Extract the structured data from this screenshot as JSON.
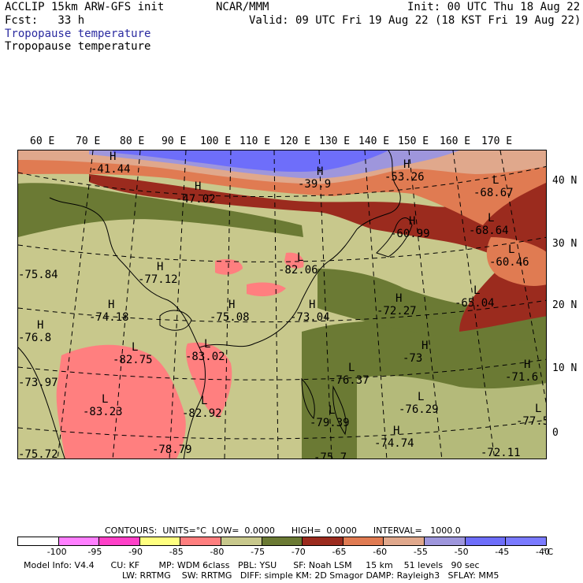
{
  "header": {
    "line1_left": "ACCLIP 15km ARW-GFS init",
    "line1_mid": "NCAR/MMM",
    "line1_right": "Init: 00 UTC Thu 18 Aug 22",
    "line2_left": "Fcst:   33 h",
    "line2_right": "Valid: 09 UTC Fri 19 Aug 22 (18 KST Fri 19 Aug 22)",
    "field_title_1": "Tropopause temperature",
    "field_title_2": "Tropopause temperature"
  },
  "axes": {
    "lon_labels": [
      "60 E",
      "70 E",
      "80 E",
      "90 E",
      "100 E",
      "110 E",
      "120 E",
      "130 E",
      "140 E",
      "150 E",
      "160 E",
      "170 E"
    ],
    "lat_labels": [
      "40 N",
      "30 N",
      "20 N",
      "10 N",
      "0"
    ]
  },
  "map_labels": [
    {
      "mark": "H",
      "value": "-41.44"
    },
    {
      "mark": "H",
      "value": "-47.02"
    },
    {
      "mark": "H",
      "value": "-39.9"
    },
    {
      "mark": "H",
      "value": "-53.26"
    },
    {
      "mark": "L",
      "value": "-68.67"
    },
    {
      "mark": "H",
      "value": "-60.99"
    },
    {
      "mark": "L",
      "value": "-68.64"
    },
    {
      "mark": "L",
      "value": "-60.46"
    },
    {
      "mark": "L",
      "value": "-82.06"
    },
    {
      "mark": "H",
      "value": "-77.12"
    },
    {
      "mark": "",
      "value": "-75.84"
    },
    {
      "mark": "H",
      "value": "-74.18"
    },
    {
      "mark": "H",
      "value": "-75.08"
    },
    {
      "mark": "H",
      "value": "-73.04"
    },
    {
      "mark": "H",
      "value": "-72.27"
    },
    {
      "mark": "L",
      "value": "-65.04"
    },
    {
      "mark": "H",
      "value": "-76.8"
    },
    {
      "mark": "L",
      "value": "-82.75"
    },
    {
      "mark": "L",
      "value": "-83.02"
    },
    {
      "mark": "H",
      "value": "-73"
    },
    {
      "mark": "H",
      "value": "-71.6"
    },
    {
      "mark": "",
      "value": "-73.97"
    },
    {
      "mark": "L",
      "value": "-76.37"
    },
    {
      "mark": "L",
      "value": "-83.23"
    },
    {
      "mark": "L",
      "value": "-82.92"
    },
    {
      "mark": "L",
      "value": "-76.29"
    },
    {
      "mark": "L",
      "value": "-77.5"
    },
    {
      "mark": "L",
      "value": "-79.39"
    },
    {
      "mark": "H",
      "value": "-74.74"
    },
    {
      "mark": "",
      "value": "-75.72"
    },
    {
      "mark": "",
      "value": "-78.79"
    },
    {
      "mark": "",
      "value": "-75.7"
    },
    {
      "mark": "",
      "value": "-72.11"
    }
  ],
  "contours": {
    "text": "CONTOURS:  UNITS=°C  LOW=  0.0000      HIGH=  0.0000      INTERVAL=   1000.0"
  },
  "legend": {
    "unit": "°C",
    "ticks": [
      "-100",
      "-95",
      "-90",
      "-85",
      "-80",
      "-75",
      "-70",
      "-65",
      "-60",
      "-55",
      "-50",
      "-45",
      "-40"
    ],
    "colors": [
      "#ffffff",
      "#ff7fff",
      "#ff40c8",
      "#ffff80",
      "#ff7f7f",
      "#c8c88c",
      "#6b7a34",
      "#9b2b1e",
      "#e07b52",
      "#e0a88c",
      "#9e96dc",
      "#6e6efa",
      "#7a7aff"
    ]
  },
  "footer": {
    "line1": "Model Info: V4.4      CU: KF       MP: WDM 6class   PBL: YSU      SF: Noah LSM     15 km    51 levels   90 sec",
    "line2": "LW: RRTMG    SW: RRTMG   DIFF: simple KM: 2D Smagor DAMP: Rayleigh3   SFLAY: MM5"
  },
  "colors": {
    "olive_light": "#c8c88c",
    "olive_dark": "#6b7a34",
    "salmon": "#ff7f7f",
    "brick": "#9b2b1e",
    "orange": "#e07b52",
    "tan": "#e0a88c",
    "lavender": "#9e96dc",
    "blue": "#6e6efa",
    "yellow_pale": "#f0eeb4"
  }
}
